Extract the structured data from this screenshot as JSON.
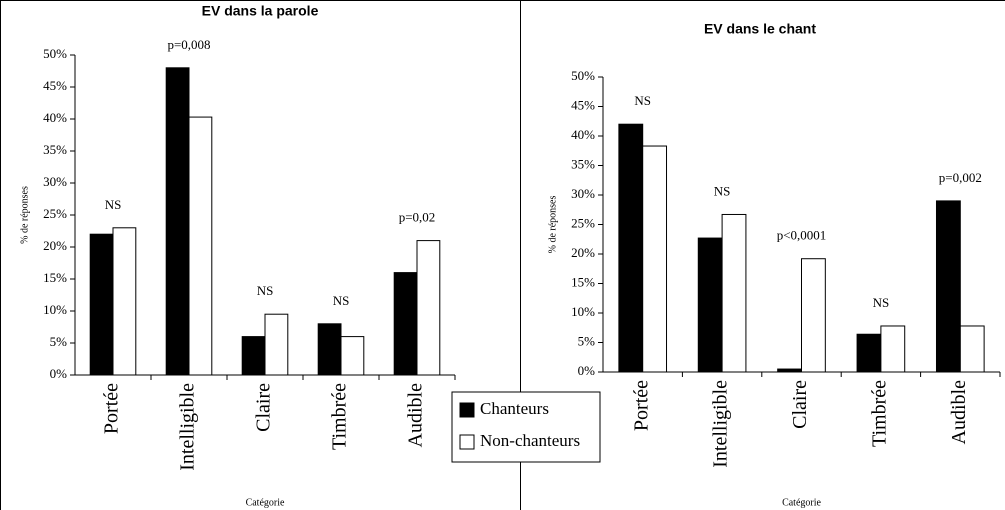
{
  "chart_data": [
    {
      "type": "bar",
      "title": "EV dans la parole",
      "ylabel": "% de réponses",
      "xlabel": "Catégorie",
      "categories": [
        "Portée",
        "Intelligible",
        "Claire",
        "Timbrée",
        "Audible"
      ],
      "annotations": [
        "NS",
        "p=0,008",
        "NS",
        "NS",
        "p=0,02"
      ],
      "series": [
        {
          "name": "Chanteurs",
          "color": "#000000",
          "values": [
            22,
            48,
            6,
            8,
            16
          ]
        },
        {
          "name": "Non-chanteurs",
          "color": "#ffffff",
          "values": [
            23,
            40.3,
            9.5,
            6,
            21
          ]
        }
      ],
      "ylim": [
        0,
        50
      ],
      "yticks": [
        {
          "value": 0,
          "label": "0%"
        },
        {
          "value": 5,
          "label": "5%"
        },
        {
          "value": 10,
          "label": "10%"
        },
        {
          "value": 15,
          "label": "15%"
        },
        {
          "value": 20,
          "label": "20%"
        },
        {
          "value": 25,
          "label": "25%"
        },
        {
          "value": 30,
          "label": "30%"
        },
        {
          "value": 35,
          "label": "35%"
        },
        {
          "value": 40,
          "label": "40%"
        },
        {
          "value": 45,
          "label": "45%"
        },
        {
          "value": 50,
          "label": "50%"
        }
      ]
    },
    {
      "type": "bar",
      "title": "EV dans le chant",
      "ylabel": "% de réponses",
      "xlabel": "Catégorie",
      "categories": [
        "Portée",
        "Intelligible",
        "Claire",
        "Timbrée",
        "Audible"
      ],
      "annotations": [
        "NS",
        "NS",
        "p<0,0001",
        "NS",
        "p=0,002"
      ],
      "series": [
        {
          "color": "#000000",
          "values": [
            42,
            22.7,
            0.5,
            6.4,
            29
          ]
        },
        {
          "color": "#ffffff",
          "values": [
            38.3,
            26.7,
            19.2,
            7.8,
            7.8
          ]
        }
      ],
      "ylim": [
        0,
        50
      ],
      "yticks": [
        {
          "value": 0,
          "label": "0%"
        },
        {
          "value": 5,
          "label": "5%"
        },
        {
          "value": 10,
          "label": "10%"
        },
        {
          "value": 15,
          "label": "15%"
        },
        {
          "value": 20,
          "label": "20%"
        },
        {
          "value": 25,
          "label": "25%"
        },
        {
          "value": 30,
          "label": "30%"
        },
        {
          "value": 35,
          "label": "35%"
        },
        {
          "value": 40,
          "label": "40%"
        },
        {
          "value": 45,
          "label": "45%"
        },
        {
          "value": 50,
          "label": "50%"
        }
      ]
    }
  ]
}
